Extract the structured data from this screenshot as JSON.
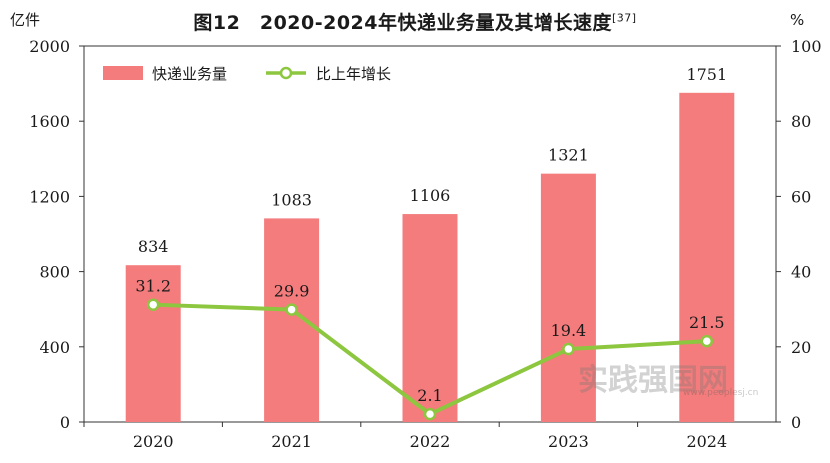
{
  "chart_data": {
    "type": "bar",
    "title": "图12　2020-2024年快递业务量及其增长速度",
    "title_ref": "[37]",
    "left_unit": "亿件",
    "right_unit": "%",
    "categories": [
      "2020",
      "2021",
      "2022",
      "2023",
      "2024"
    ],
    "series": [
      {
        "name": "快递业务量",
        "kind": "bar",
        "axis": "left",
        "color": "#f47c7c",
        "values": [
          834,
          1083,
          1106,
          1321,
          1751
        ],
        "labels": [
          "834",
          "1083",
          "1106",
          "1321",
          "1751"
        ]
      },
      {
        "name": "比上年增长",
        "kind": "line",
        "axis": "right",
        "color": "#8dc63f",
        "values": [
          31.2,
          29.9,
          2.1,
          19.4,
          21.5
        ],
        "labels": [
          "31.2",
          "29.9",
          "2.1",
          "19.4",
          "21.5"
        ]
      }
    ],
    "left_ylim": [
      0,
      2000
    ],
    "left_ticks": [
      0,
      400,
      800,
      1200,
      1600,
      2000
    ],
    "left_tick_labels": [
      "0",
      "400",
      "800",
      "1200",
      "1600",
      "2000"
    ],
    "right_ylim": [
      0,
      100
    ],
    "right_ticks": [
      0,
      20,
      40,
      60,
      80,
      100
    ],
    "right_tick_labels": [
      "0",
      "20",
      "40",
      "60",
      "80",
      "100"
    ],
    "legend_position": "top-left",
    "grid": false
  },
  "watermark": {
    "text": "实践强国网",
    "url": "www.peoplesj.cn"
  }
}
